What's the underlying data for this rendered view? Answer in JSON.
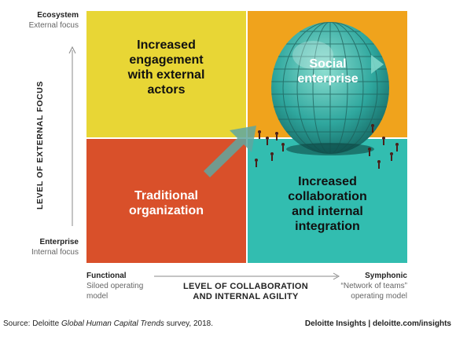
{
  "quadrants": {
    "top_left": {
      "label": "Increased\nengagement\nwith external\nactors",
      "color": "#E8D635"
    },
    "top_right": {
      "label": "Social\nenterprise",
      "color": "#F0A31C"
    },
    "bottom_left": {
      "label": "Traditional\norganization",
      "color": "#D9502A"
    },
    "bottom_right": {
      "label": "Increased\ncollaboration\nand internal\nintegration",
      "color": "#32BDB0"
    }
  },
  "y_axis": {
    "label": "LEVEL OF EXTERNAL FOCUS",
    "top_title": "Ecosystem",
    "top_sub": "External focus",
    "bottom_title": "Enterprise",
    "bottom_sub": "Internal focus"
  },
  "x_axis": {
    "label": "LEVEL OF COLLABORATION\nAND INTERNAL AGILITY",
    "left_title": "Functional",
    "left_sub1": "Siloed operating",
    "left_sub2": "model",
    "right_title": "Symphonic",
    "right_sub1": "“Network of teams”",
    "right_sub2": "operating model"
  },
  "footer": {
    "source_prefix": "Source: Deloitte ",
    "source_italic": "Global Human Capital Trends",
    "source_suffix": " survey, 2018.",
    "credit": "Deloitte Insights | deloitte.com/insights"
  },
  "icons": [
    "up-arrow-icon",
    "right-arrow-icon",
    "diagonal-arrow-icon",
    "geodesic-globe-illustration"
  ]
}
